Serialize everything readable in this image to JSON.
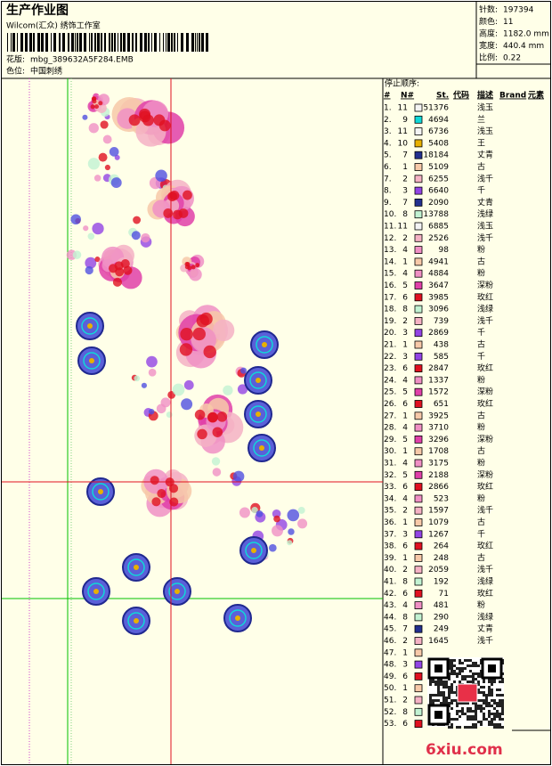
{
  "header": {
    "title": "生产作业图",
    "studio": "Wilcom(汇众) 绣饰工作室",
    "file_label": "花版:",
    "file": "mbg_389632A5F284.EMB",
    "color_label": "色位:",
    "color_name": "中国刺绣"
  },
  "stats": [
    {
      "label": "针数:",
      "value": 197394
    },
    {
      "label": "颜色:",
      "value": 11
    },
    {
      "label": "高度:",
      "value": "1182.0 mm"
    },
    {
      "label": "宽度:",
      "value": "440.4 mm"
    },
    {
      "label": "比例:",
      "value": 0.22
    }
  ],
  "stop_sequence": {
    "title": "停止顺序:",
    "columns": [
      "#",
      "N#",
      "St.",
      "代码",
      "描述",
      "Brand",
      "元素"
    ],
    "rows": [
      {
        "no": "1.",
        "needle": 11,
        "color": "#f4f4f4",
        "stitches": 51376,
        "desc": "浅玉"
      },
      {
        "no": "2.",
        "needle": 9,
        "color": "#10d8d8",
        "stitches": 4694,
        "desc": "兰"
      },
      {
        "no": "3.",
        "needle": 11,
        "color": "#f4f4f4",
        "stitches": 6736,
        "desc": "浅玉"
      },
      {
        "no": "4.",
        "needle": 10,
        "color": "#e8b000",
        "stitches": 5408,
        "desc": "王"
      },
      {
        "no": "5.",
        "needle": 7,
        "color": "#23308f",
        "stitches": 18184,
        "desc": "丈青"
      },
      {
        "no": "6.",
        "needle": 1,
        "color": "#f7c9a8",
        "stitches": 5109,
        "desc": "古"
      },
      {
        "no": "7.",
        "needle": 2,
        "color": "#f5b2c4",
        "stitches": 6255,
        "desc": "浅千"
      },
      {
        "no": "8.",
        "needle": 3,
        "color": "#9244e4",
        "stitches": 6640,
        "desc": "千"
      },
      {
        "no": "9.",
        "needle": 7,
        "color": "#23308f",
        "stitches": 2090,
        "desc": "丈青"
      },
      {
        "no": "10.",
        "needle": 8,
        "color": "#c2f2d2",
        "stitches": 13788,
        "desc": "浅绿"
      },
      {
        "no": "11.",
        "needle": 11,
        "color": "#f4f4f4",
        "stitches": 6885,
        "desc": "浅玉"
      },
      {
        "no": "12.",
        "needle": 2,
        "color": "#f5b2c4",
        "stitches": 2526,
        "desc": "浅千"
      },
      {
        "no": "13.",
        "needle": 4,
        "color": "#f090c4",
        "stitches": 98,
        "desc": "粉"
      },
      {
        "no": "14.",
        "needle": 1,
        "color": "#f7c9a8",
        "stitches": 4941,
        "desc": "古"
      },
      {
        "no": "15.",
        "needle": 4,
        "color": "#f090c4",
        "stitches": 4884,
        "desc": "粉"
      },
      {
        "no": "16.",
        "needle": 5,
        "color": "#e040a8",
        "stitches": 3647,
        "desc": "深粉"
      },
      {
        "no": "17.",
        "needle": 6,
        "color": "#e01020",
        "stitches": 3985,
        "desc": "玫红"
      },
      {
        "no": "18.",
        "needle": 8,
        "color": "#c2f2d2",
        "stitches": 3096,
        "desc": "浅绿"
      },
      {
        "no": "19.",
        "needle": 2,
        "color": "#f5b2c4",
        "stitches": 739,
        "desc": "浅千"
      },
      {
        "no": "20.",
        "needle": 3,
        "color": "#9244e4",
        "stitches": 2869,
        "desc": "千"
      },
      {
        "no": "21.",
        "needle": 1,
        "color": "#f7c9a8",
        "stitches": 438,
        "desc": "古"
      },
      {
        "no": "22.",
        "needle": 3,
        "color": "#9244e4",
        "stitches": 585,
        "desc": "千"
      },
      {
        "no": "23.",
        "needle": 6,
        "color": "#e01020",
        "stitches": 2847,
        "desc": "玫红"
      },
      {
        "no": "24.",
        "needle": 4,
        "color": "#f090c4",
        "stitches": 1337,
        "desc": "粉"
      },
      {
        "no": "25.",
        "needle": 5,
        "color": "#e040a8",
        "stitches": 1572,
        "desc": "深粉"
      },
      {
        "no": "26.",
        "needle": 6,
        "color": "#e01020",
        "stitches": 651,
        "desc": "玫红"
      },
      {
        "no": "27.",
        "needle": 1,
        "color": "#f7c9a8",
        "stitches": 3925,
        "desc": "古"
      },
      {
        "no": "28.",
        "needle": 4,
        "color": "#f090c4",
        "stitches": 3710,
        "desc": "粉"
      },
      {
        "no": "29.",
        "needle": 5,
        "color": "#e040a8",
        "stitches": 3296,
        "desc": "深粉"
      },
      {
        "no": "30.",
        "needle": 1,
        "color": "#f7c9a8",
        "stitches": 1708,
        "desc": "古"
      },
      {
        "no": "31.",
        "needle": 4,
        "color": "#f090c4",
        "stitches": 3175,
        "desc": "粉"
      },
      {
        "no": "32.",
        "needle": 5,
        "color": "#e040a8",
        "stitches": 2188,
        "desc": "深粉"
      },
      {
        "no": "33.",
        "needle": 6,
        "color": "#e01020",
        "stitches": 2866,
        "desc": "玫红"
      },
      {
        "no": "34.",
        "needle": 4,
        "color": "#f090c4",
        "stitches": 523,
        "desc": "粉"
      },
      {
        "no": "35.",
        "needle": 2,
        "color": "#f5b2c4",
        "stitches": 1597,
        "desc": "浅千"
      },
      {
        "no": "36.",
        "needle": 1,
        "color": "#f7c9a8",
        "stitches": 1079,
        "desc": "古"
      },
      {
        "no": "37.",
        "needle": 3,
        "color": "#9244e4",
        "stitches": 1267,
        "desc": "千"
      },
      {
        "no": "38.",
        "needle": 6,
        "color": "#e01020",
        "stitches": 264,
        "desc": "玫红"
      },
      {
        "no": "39.",
        "needle": 1,
        "color": "#f7c9a8",
        "stitches": 248,
        "desc": "古"
      },
      {
        "no": "40.",
        "needle": 2,
        "color": "#f5b2c4",
        "stitches": 2059,
        "desc": "浅千"
      },
      {
        "no": "41.",
        "needle": 8,
        "color": "#c2f2d2",
        "stitches": 192,
        "desc": "浅绿"
      },
      {
        "no": "42.",
        "needle": 6,
        "color": "#e01020",
        "stitches": 71,
        "desc": "玫红"
      },
      {
        "no": "43.",
        "needle": 4,
        "color": "#f090c4",
        "stitches": 481,
        "desc": "粉"
      },
      {
        "no": "44.",
        "needle": 8,
        "color": "#c2f2d2",
        "stitches": 290,
        "desc": "浅绿"
      },
      {
        "no": "45.",
        "needle": 7,
        "color": "#23308f",
        "stitches": 249,
        "desc": "丈青"
      },
      {
        "no": "46.",
        "needle": 2,
        "color": "#f5b2c4",
        "stitches": 1645,
        "desc": "浅千"
      },
      {
        "no": "47.",
        "needle": 1,
        "color": "#f7c9a8"
      },
      {
        "no": "48.",
        "needle": 3,
        "color": "#9244e4"
      },
      {
        "no": "49.",
        "needle": 6,
        "color": "#e01020"
      },
      {
        "no": "50.",
        "needle": 1,
        "color": "#f7c9a8"
      },
      {
        "no": "51.",
        "needle": 2,
        "color": "#f5b2c4"
      },
      {
        "no": "52.",
        "needle": 8,
        "color": "#c2f2d2"
      },
      {
        "no": "53.",
        "needle": 6,
        "color": "#e01020"
      }
    ]
  },
  "watermark": "6xiu.com"
}
